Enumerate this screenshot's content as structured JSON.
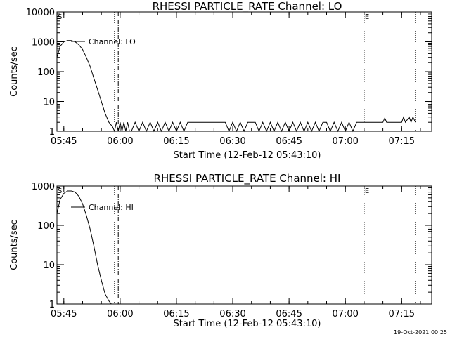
{
  "date_stamp": "19-Oct-2021 00:25",
  "chart_data": [
    {
      "type": "line",
      "title": "RHESSI PARTICLE_RATE Channel: LO",
      "xlabel": "Start Time (12-Feb-12 05:43:10)",
      "ylabel": "Counts/sec",
      "yscale": "log",
      "ylim": [
        1,
        10000
      ],
      "xlim": [
        "05:43:10",
        "07:23:00"
      ],
      "yticks": [
        1,
        10,
        100,
        1000,
        10000
      ],
      "ytick_labels": [
        "1",
        "10",
        "100",
        "1000",
        "10000"
      ],
      "xticks": [
        "05:45",
        "06:00",
        "06:15",
        "06:30",
        "06:45",
        "07:00",
        "07:15"
      ],
      "legend": {
        "label": "Channel: LO",
        "position": "top-left"
      },
      "markers": {
        "start": "S",
        "end": "E"
      },
      "vlines": [
        {
          "time": "05:58:30",
          "style": "dotted"
        },
        {
          "time": "05:59:30",
          "style": "dashdot"
        },
        {
          "time": "07:05:00",
          "style": "dotted"
        },
        {
          "time": "07:18:40",
          "style": "dotted"
        }
      ],
      "series": [
        {
          "name": "Channel: LO",
          "x": [
            "05:43:10",
            "05:44:00",
            "05:45:00",
            "05:46:00",
            "05:47:00",
            "05:48:00",
            "05:49:00",
            "05:50:00",
            "05:51:00",
            "05:52:00",
            "05:53:00",
            "05:54:00",
            "05:55:00",
            "05:56:00",
            "05:57:00",
            "05:58:00",
            "05:58:30",
            "05:59:00",
            "05:59:30",
            "06:00:00",
            "06:00:30",
            "06:01:00",
            "06:01:30",
            "06:02:00",
            "06:02:30",
            "06:03:00",
            "06:04:00",
            "06:05:00",
            "06:06:00",
            "06:07:00",
            "06:08:00",
            "06:09:00",
            "06:10:00",
            "06:11:00",
            "06:12:00",
            "06:13:00",
            "06:14:00",
            "06:15:00",
            "06:16:00",
            "06:17:00",
            "06:18:00",
            "06:19:00",
            "06:20:00",
            "06:21:00",
            "06:22:00",
            "06:23:00",
            "06:24:00",
            "06:25:00",
            "06:26:00",
            "06:27:00",
            "06:28:00",
            "06:29:00",
            "06:30:00",
            "06:31:00",
            "06:32:00",
            "06:33:00",
            "06:34:00",
            "06:35:00",
            "06:36:00",
            "06:37:00",
            "06:38:00",
            "06:39:00",
            "06:40:00",
            "06:41:00",
            "06:42:00",
            "06:43:00",
            "06:44:00",
            "06:45:00",
            "06:46:00",
            "06:47:00",
            "06:48:00",
            "06:49:00",
            "06:50:00",
            "06:51:00",
            "06:52:00",
            "06:53:00",
            "06:54:00",
            "06:55:00",
            "06:56:00",
            "06:57:00",
            "06:58:00",
            "06:59:00",
            "07:00:00",
            "07:01:00",
            "07:02:00",
            "07:03:00",
            "07:04:00",
            "07:05:00",
            "07:06:00",
            "07:07:00",
            "07:08:00",
            "07:09:00",
            "07:10:00",
            "07:10:30",
            "07:11:00",
            "07:12:00",
            "07:13:00",
            "07:14:00",
            "07:15:00",
            "07:15:30",
            "07:16:00",
            "07:17:00",
            "07:17:30",
            "07:18:00",
            "07:18:40"
          ],
          "y": [
            300,
            700,
            1000,
            1100,
            1100,
            1000,
            800,
            550,
            300,
            150,
            60,
            25,
            10,
            4,
            2,
            1.4,
            1,
            2,
            1,
            2,
            1,
            2,
            1,
            2,
            1,
            1,
            2,
            1,
            2,
            1,
            2,
            1,
            2,
            1,
            2,
            1,
            2,
            1,
            2,
            1,
            2,
            2,
            2,
            2,
            2,
            2,
            2,
            2,
            2,
            2,
            2,
            1,
            2,
            1,
            2,
            1,
            2,
            2,
            2,
            1,
            2,
            1,
            2,
            1,
            2,
            1,
            2,
            1,
            2,
            1,
            2,
            1,
            2,
            1,
            2,
            1,
            2,
            2,
            1,
            2,
            1,
            2,
            1,
            2,
            1,
            2,
            2,
            2,
            2,
            2,
            2,
            2,
            2,
            2.8,
            2,
            2,
            2,
            2,
            2,
            3,
            2,
            3,
            2,
            3,
            2
          ]
        }
      ]
    },
    {
      "type": "line",
      "title": "RHESSI PARTICLE_RATE Channel: HI",
      "xlabel": "Start Time (12-Feb-12 05:43:10)",
      "ylabel": "Counts/sec",
      "yscale": "log",
      "ylim": [
        1,
        1000
      ],
      "xlim": [
        "05:43:10",
        "07:23:00"
      ],
      "yticks": [
        1,
        10,
        100,
        1000
      ],
      "ytick_labels": [
        "1",
        "10",
        "100",
        "1000"
      ],
      "xticks": [
        "05:45",
        "06:00",
        "06:15",
        "06:30",
        "06:45",
        "07:00",
        "07:15"
      ],
      "legend": {
        "label": "Channel: HI",
        "position": "top-left"
      },
      "markers": {
        "start": "S",
        "end": "E"
      },
      "vlines": [
        {
          "time": "05:58:30",
          "style": "dotted"
        },
        {
          "time": "05:59:30",
          "style": "dashdot"
        },
        {
          "time": "07:05:00",
          "style": "dotted"
        },
        {
          "time": "07:18:40",
          "style": "dotted"
        }
      ],
      "series": [
        {
          "name": "Channel: HI",
          "x": [
            "05:43:10",
            "05:44:00",
            "05:45:00",
            "05:46:00",
            "05:47:00",
            "05:48:00",
            "05:49:00",
            "05:50:00",
            "05:51:00",
            "05:52:00",
            "05:53:00",
            "05:54:00",
            "05:55:00",
            "05:56:00",
            "05:57:00",
            "05:57:40"
          ],
          "y": [
            200,
            450,
            650,
            750,
            750,
            700,
            550,
            350,
            180,
            80,
            30,
            10,
            4,
            1.8,
            1.2,
            1
          ]
        }
      ]
    }
  ]
}
